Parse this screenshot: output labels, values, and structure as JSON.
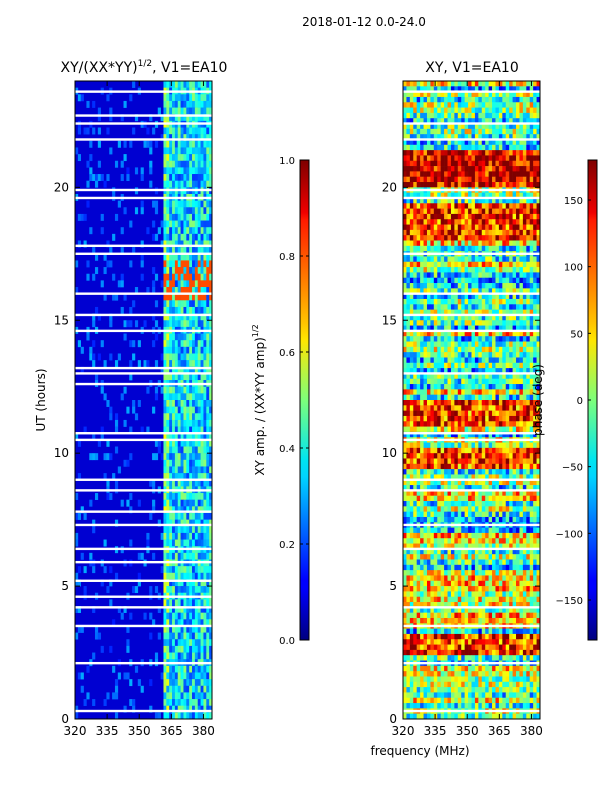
{
  "figure": {
    "suptitle": "2018-01-12 0.0-24.0",
    "shared_xlabel": "frequency (MHz)"
  },
  "chart_data": [
    {
      "type": "heatmap",
      "title": "XY/(XX*YY)^1/2, V1=EA10",
      "title_main": "XY/(XX*YY)",
      "title_exp": "1/2",
      "title_tail": ", V1=EA10",
      "xlabel": "frequency (MHz)",
      "ylabel": "UT (hours)",
      "xlim": [
        320,
        384
      ],
      "ylim": [
        0,
        24
      ],
      "xticks": [
        320,
        335,
        350,
        365,
        380
      ],
      "yticks": [
        0,
        5,
        10,
        15,
        20
      ],
      "colorbar": {
        "label": "XY amp. / (XX*YY amp)^1/2",
        "label_main": "XY amp. / (XX*YY amp)",
        "label_exp": "1/2",
        "range": [
          0.0,
          1.0
        ],
        "ticks": [
          "0.0",
          "0.2",
          "0.4",
          "0.6",
          "0.8",
          "1.0"
        ],
        "colormap": "jet"
      },
      "value_bands": [
        {
          "freq_range": [
            320,
            361
          ],
          "typical_value": 0.1
        },
        {
          "freq_range": [
            361,
            364
          ],
          "typical_value": 0.45
        },
        {
          "freq_range": [
            364,
            384
          ],
          "typical_value": 0.35
        }
      ],
      "flagged_hours": [
        0.3,
        2.1,
        3.5,
        4.2,
        4.6,
        5.2,
        5.9,
        6.4,
        7.3,
        7.8,
        8.6,
        9.0,
        10.5,
        10.75,
        12.6,
        13.0,
        13.2,
        14.6,
        15.2,
        16.0,
        17.5,
        17.8,
        19.6,
        19.9,
        21.8,
        22.4,
        22.7,
        23.6
      ]
    },
    {
      "type": "heatmap",
      "title": "XY, V1=EA10",
      "xlabel": "frequency (MHz)",
      "ylabel": "",
      "xlim": [
        320,
        384
      ],
      "ylim": [
        0,
        24
      ],
      "xticks": [
        320,
        335,
        350,
        365,
        380
      ],
      "yticks": [
        0,
        5,
        10,
        15,
        20
      ],
      "colorbar": {
        "label": "phase (deg)",
        "range": [
          -180,
          180
        ],
        "ticks": [
          "−150",
          "−100",
          "−50",
          "0",
          "50",
          "100",
          "150"
        ],
        "tick_values": [
          -150,
          -100,
          -50,
          0,
          50,
          100,
          150
        ],
        "colormap": "jet"
      },
      "value_bands": [
        {
          "hours": [
            2.5,
            3.3
          ],
          "typical_value": 120
        },
        {
          "hours": [
            9.5,
            10.2
          ],
          "typical_value": 110
        },
        {
          "hours": [
            11.0,
            12.0
          ],
          "typical_value": 110
        },
        {
          "hours": [
            18.0,
            19.5
          ],
          "typical_value": 120
        },
        {
          "hours": [
            20.0,
            21.5
          ],
          "typical_value": 150
        }
      ],
      "flagged_hours": [
        0.3,
        2.1,
        3.5,
        4.2,
        6.4,
        7.3,
        8.6,
        9.0,
        10.5,
        10.75,
        13.0,
        14.6,
        15.2,
        16.0,
        17.5,
        19.6,
        19.9,
        21.8,
        22.4,
        23.6
      ]
    }
  ]
}
